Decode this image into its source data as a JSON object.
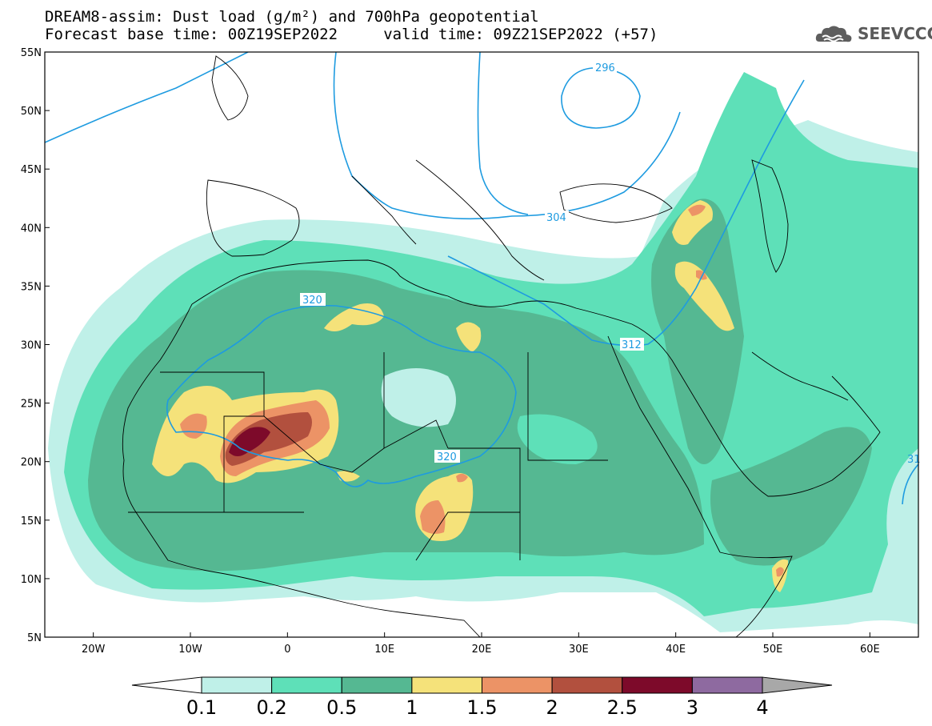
{
  "header": {
    "title_line1": "DREAM8-assim: Dust load (g/m²) and 700hPa geopotential",
    "title_line2": "Forecast base time: 00Z19SEP2022     valid time: 09Z21SEP2022 (+57)"
  },
  "logo": {
    "text": "SEEVCCC",
    "icon": "cloud-logo-icon"
  },
  "map": {
    "lon_range": [
      -25,
      65
    ],
    "lat_range": [
      5,
      55
    ],
    "lon_ticks": [
      "20W",
      "10W",
      "0",
      "10E",
      "20E",
      "30E",
      "40E",
      "50E",
      "60E"
    ],
    "lat_ticks": [
      "55N",
      "50N",
      "45N",
      "40N",
      "35N",
      "30N",
      "25N",
      "20N",
      "15N",
      "10N",
      "5N"
    ],
    "contour_labels": [
      "296",
      "304",
      "312",
      "320",
      "320",
      "31"
    ]
  },
  "colorbar": {
    "labels": [
      "0.1",
      "0.2",
      "0.5",
      "1",
      "1.5",
      "2",
      "2.5",
      "3",
      "4"
    ],
    "colors": [
      "#bff0e8",
      "#5ee0b8",
      "#55b892",
      "#f5e27a",
      "#ec9366",
      "#b2503e",
      "#7d0a2a",
      "#8e6aa0",
      "#a8a8a8"
    ]
  }
}
